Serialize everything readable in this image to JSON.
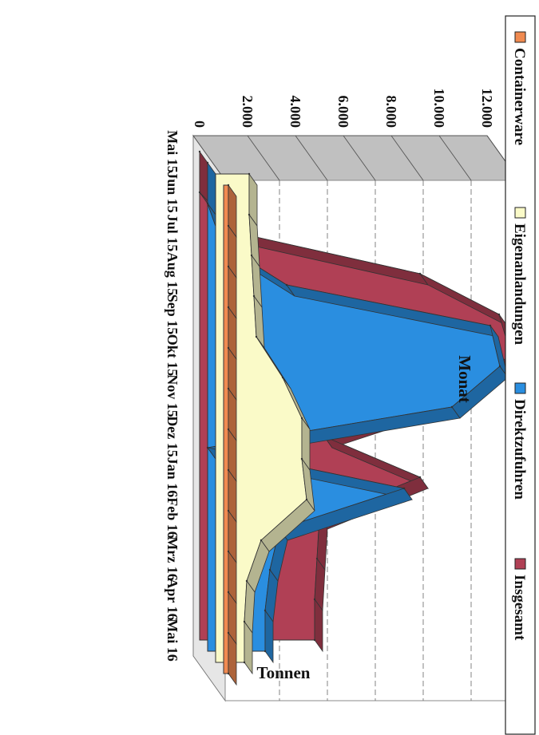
{
  "chart_data": {
    "type": "area",
    "view": "3d",
    "orientation": "rotated-90-clockwise",
    "xlabel": "Monat",
    "ylabel": "Tonnen",
    "ylim": [
      0,
      12000
    ],
    "y_ticks": [
      "0",
      "2.000",
      "4.000",
      "6.000",
      "8.000",
      "10.000",
      "12.000"
    ],
    "y_tick_values": [
      0,
      2000,
      4000,
      6000,
      8000,
      10000,
      12000
    ],
    "categories": [
      "Mai 15",
      "Jun 15",
      "Jul 15",
      "Aug 15",
      "Sep 15",
      "Okt 15",
      "Nov 15",
      "Dez 15",
      "Jan 16",
      "Feb 16",
      "Mrz 16",
      "Apr 16",
      "Mai 16"
    ],
    "series": [
      {
        "name": "Containerware",
        "color": "#f08a50",
        "values": [
          200,
          200,
          200,
          200,
          200,
          200,
          200,
          200,
          200,
          200,
          200,
          200,
          200
        ]
      },
      {
        "name": "Eigenanlandungen",
        "color": "#fafac8",
        "values": [
          1400,
          1400,
          1500,
          1600,
          1700,
          2800,
          3600,
          3600,
          3800,
          1900,
          1300,
          1200,
          1200
        ]
      },
      {
        "name": "Direktzufuhren",
        "color": "#2a8ee0",
        "values": [
          0,
          0,
          600,
          3300,
          11800,
          12200,
          10200,
          0,
          8200,
          3000,
          2600,
          2400,
          2400
        ]
      },
      {
        "name": "Insgesamt",
        "color": "#b04055",
        "values": [
          0,
          0,
          1600,
          9200,
          12500,
          13000,
          10400,
          5200,
          9200,
          5000,
          4900,
          4800,
          4800
        ]
      }
    ],
    "grid": true,
    "legend_position": "right"
  }
}
